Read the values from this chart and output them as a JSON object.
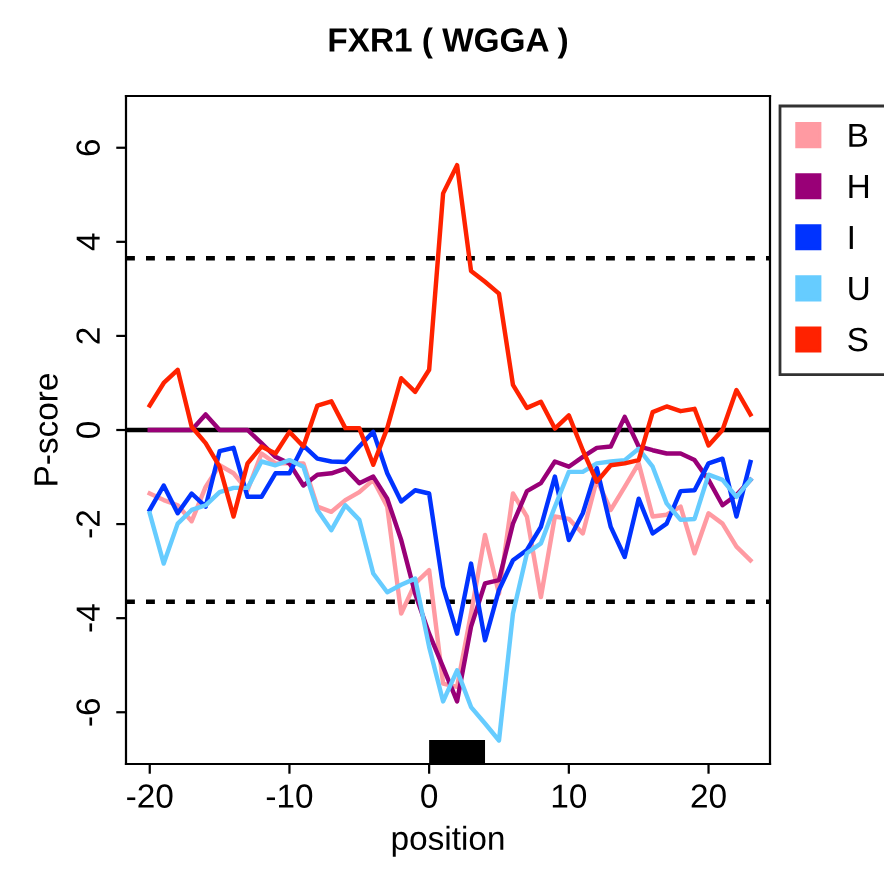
{
  "chart_data": {
    "type": "line",
    "title": "FXR1 ( WGGA )",
    "xlabel": "position",
    "ylabel": "P-score",
    "x": [
      -20,
      -19,
      -18,
      -17,
      -16,
      -15,
      -14,
      -13,
      -12,
      -11,
      -10,
      -9,
      -8,
      -7,
      -6,
      -5,
      -4,
      -3,
      -2,
      -1,
      0,
      1,
      2,
      3,
      4,
      5,
      6,
      7,
      8,
      9,
      10,
      11,
      12,
      13,
      14,
      15,
      16,
      17,
      18,
      19,
      20,
      21,
      22,
      23
    ],
    "series": [
      {
        "name": "B",
        "color": "#ff9aa2",
        "values": [
          -1.35,
          -1.49,
          -1.6,
          -1.94,
          -1.21,
          -0.75,
          -0.92,
          -1.28,
          -0.5,
          -0.71,
          -0.71,
          -0.71,
          -1.63,
          -1.74,
          -1.49,
          -1.32,
          -1.06,
          -1.63,
          -3.9,
          -3.26,
          -2.98,
          -5.39,
          -5.46,
          -3.9,
          -2.23,
          -3.48,
          -1.35,
          -1.84,
          -3.55,
          -1.84,
          -1.89,
          -2.2,
          -1.06,
          -1.7,
          -1.21,
          -0.71,
          -1.84,
          -1.8,
          -1.63,
          -2.62,
          -1.77,
          -1.99,
          -2.48,
          -2.77
        ]
      },
      {
        "name": "H",
        "color": "#990077",
        "values": [
          0,
          0,
          0,
          0,
          0.33,
          0,
          0,
          0,
          -0.28,
          -0.57,
          -0.71,
          -1.18,
          -0.95,
          -0.92,
          -0.82,
          -1.13,
          -0.99,
          -1.46,
          -2.34,
          -3.48,
          -4.33,
          -5.04,
          -5.77,
          -4.18,
          -3.26,
          -3.19,
          -1.99,
          -1.3,
          -1.13,
          -0.67,
          -0.78,
          -0.57,
          -0.38,
          -0.35,
          0.28,
          -0.35,
          -0.43,
          -0.5,
          -0.5,
          -0.64,
          -1.06,
          -1.6,
          -1.38,
          -1.06
        ]
      },
      {
        "name": "I",
        "color": "#0033ff",
        "values": [
          -1.7,
          -1.18,
          -1.77,
          -1.35,
          -1.63,
          -0.45,
          -0.38,
          -1.42,
          -1.42,
          -0.92,
          -0.92,
          -0.33,
          -0.61,
          -0.67,
          -0.68,
          -0.35,
          -0.04,
          -0.92,
          -1.52,
          -1.28,
          -1.35,
          -3.33,
          -4.33,
          -2.84,
          -4.47,
          -3.4,
          -2.77,
          -2.55,
          -2.06,
          -0.99,
          -2.34,
          -1.77,
          -0.81,
          -2.06,
          -2.7,
          -1.46,
          -2.2,
          -1.99,
          -1.3,
          -1.28,
          -0.71,
          -0.61,
          -1.84,
          -0.68
        ]
      },
      {
        "name": "U",
        "color": "#66ccff",
        "values": [
          -1.77,
          -2.84,
          -1.99,
          -1.7,
          -1.6,
          -1.32,
          -1.23,
          -1.23,
          -0.67,
          -0.75,
          -0.64,
          -0.78,
          -1.7,
          -2.13,
          -1.6,
          -1.91,
          -3.05,
          -3.45,
          -3.29,
          -3.16,
          -4.61,
          -5.77,
          -5.11,
          -5.89,
          -6.24,
          -6.6,
          -3.9,
          -2.62,
          -2.41,
          -1.63,
          -0.89,
          -0.89,
          -0.71,
          -0.67,
          -0.64,
          -0.4,
          -0.78,
          -1.56,
          -1.91,
          -1.89,
          -0.95,
          -1.06,
          -1.42,
          -1.06
        ]
      },
      {
        "name": "S",
        "color": "#ff2200",
        "values": [
          0.52,
          1.0,
          1.28,
          0.07,
          -0.28,
          -0.78,
          -1.84,
          -0.71,
          -0.35,
          -0.5,
          -0.04,
          -0.35,
          0.52,
          0.61,
          0.04,
          0.04,
          -0.74,
          0.04,
          1.1,
          0.81,
          1.28,
          5.03,
          5.63,
          3.38,
          3.15,
          2.9,
          0.96,
          0.47,
          0.6,
          0.03,
          0.31,
          -0.43,
          -1.1,
          -0.75,
          -0.71,
          -0.64,
          0.38,
          0.5,
          0.4,
          0.45,
          -0.33,
          0,
          0.85,
          0.33
        ]
      }
    ],
    "xlim": [
      -21.7,
      24.4
    ],
    "ylim": [
      -7.1,
      7.1
    ],
    "xticks": [
      -20,
      -10,
      0,
      10,
      20
    ],
    "yticks": [
      -6,
      -4,
      -2,
      0,
      2,
      4,
      6
    ],
    "ref_lines": [
      {
        "axis": "y",
        "value": 0,
        "color": "#000000",
        "line_style": "solid"
      },
      {
        "axis": "y",
        "value": 3.65,
        "color": "#000000",
        "line_style": "dotted"
      },
      {
        "axis": "y",
        "value": -3.65,
        "color": "#000000",
        "line_style": "dotted"
      }
    ],
    "legend": "top right",
    "grid": false,
    "marker": "none",
    "line_style": "solid"
  }
}
